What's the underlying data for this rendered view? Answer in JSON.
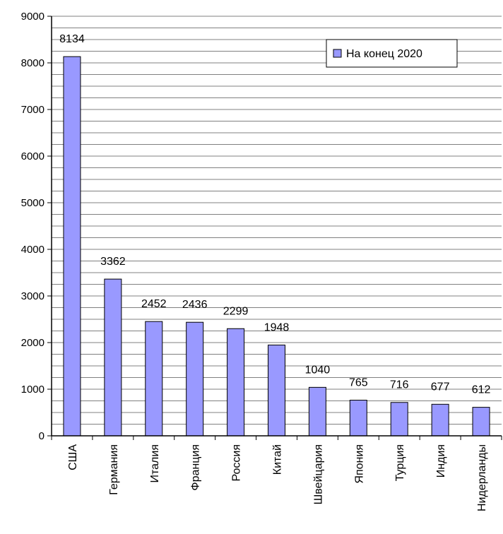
{
  "chart_data": {
    "type": "bar",
    "categories": [
      "США",
      "Германия",
      "Италия",
      "Франция",
      "Россия",
      "Китай",
      "Швейцария",
      "Япония",
      "Турция",
      "Индия",
      "Нидерланды"
    ],
    "series": [
      {
        "name": "На конец 2020",
        "values": [
          8134,
          3362,
          2452,
          2436,
          2299,
          1948,
          1040,
          765,
          716,
          677,
          612
        ]
      }
    ],
    "ylim": [
      0,
      9000
    ],
    "yticks": [
      0,
      1000,
      2000,
      3000,
      4000,
      5000,
      6000,
      7000,
      8000,
      9000
    ],
    "minor_grid_step": 250,
    "grid": true,
    "legend_position": "top-right",
    "colors": {
      "bar_fill": "#9999ff",
      "bar_stroke": "#000000",
      "grid": "#808080",
      "axis": "#000000"
    }
  }
}
